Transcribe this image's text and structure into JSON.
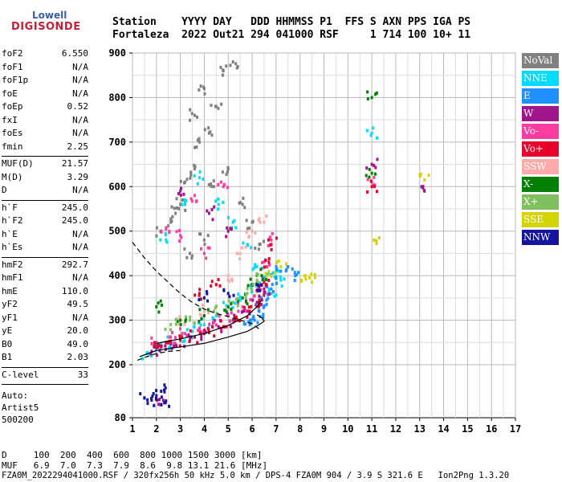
{
  "logo": {
    "top": "Lowell",
    "bottom": "DIGISONDE"
  },
  "header": {
    "labels": [
      "Station",
      "YYYY",
      "DAY",
      "DDD",
      "HHMMSS",
      "P1",
      "FFS",
      "S",
      "AXN",
      "PPS",
      "IGA",
      "PS"
    ],
    "values": [
      "Fortaleza",
      "2022",
      "Out21",
      "294",
      "041000",
      "RSF",
      "",
      "1",
      "714",
      "100",
      "10+",
      "11"
    ],
    "line1": "Station    YYYY DAY   DDD HHMMSS P1  FFS S AXN PPS IGA PS",
    "line2": "Fortaleza  2022 Out21 294 041000 RSF     1 714 100 10+ 11"
  },
  "params": {
    "group1": [
      {
        "k": "foF2",
        "v": "6.550"
      },
      {
        "k": "foF1",
        "v": "N/A"
      },
      {
        "k": "foF1p",
        "v": "N/A"
      },
      {
        "k": "foE",
        "v": "N/A"
      },
      {
        "k": "foEp",
        "v": "0.52"
      },
      {
        "k": "fxI",
        "v": "N/A"
      },
      {
        "k": "foEs",
        "v": "N/A"
      },
      {
        "k": "fmin",
        "v": "2.25"
      }
    ],
    "group2": [
      {
        "k": "MUF(D)",
        "v": "21.57"
      },
      {
        "k": "M(D)",
        "v": "3.29"
      },
      {
        "k": "D",
        "v": "N/A"
      }
    ],
    "group3": [
      {
        "k": "h`F",
        "v": "245.0"
      },
      {
        "k": "h`F2",
        "v": "245.0"
      },
      {
        "k": "h`E",
        "v": "N/A"
      },
      {
        "k": "h`Es",
        "v": "N/A"
      }
    ],
    "group4": [
      {
        "k": "hmF2",
        "v": "292.7"
      },
      {
        "k": "hmF1",
        "v": "N/A"
      },
      {
        "k": "hmE",
        "v": "110.0"
      },
      {
        "k": "yF2",
        "v": "49.5"
      },
      {
        "k": "yF1",
        "v": "N/A"
      },
      {
        "k": "yE",
        "v": "20.0"
      },
      {
        "k": "B0",
        "v": "49.0"
      },
      {
        "k": "B1",
        "v": "2.03"
      }
    ],
    "group5": [
      {
        "k": "C-level",
        "v": "33"
      }
    ]
  },
  "notes": {
    "auto": "Auto:",
    "artist": "Artist5",
    "code": "500200"
  },
  "legend": [
    {
      "label": "NoVal",
      "color": "#808080"
    },
    {
      "label": "NNE",
      "color": "#00dcff"
    },
    {
      "label": "E",
      "color": "#1e90ff"
    },
    {
      "label": "W",
      "color": "#a0148c"
    },
    {
      "label": "Vo-",
      "color": "#ff3ca0"
    },
    {
      "label": "Vo+",
      "color": "#e8002a"
    },
    {
      "label": "SSW",
      "color": "#ffaaaa"
    },
    {
      "label": "X-",
      "color": "#008000"
    },
    {
      "label": "X+",
      "color": "#7fbf5f"
    },
    {
      "label": "SSE",
      "color": "#d4d400"
    },
    {
      "label": "NNW",
      "color": "#1414a0"
    }
  ],
  "footer": {
    "d_row": "D     100  200  400  600  800 1000 1500 3000 [km]",
    "muf_row": "MUF   6.9  7.0  7.3  7.9  8.6  9.8 13.1 21.6 [MHz]",
    "info": "FZA0M_2022294041000.RSF / 320fx256h 50 kHz 5.0 km / DPS-4 FZA0M 904 / 3.9 S 321.6 E   Ion2Png 1.3.20"
  },
  "chart_data": {
    "type": "scatter",
    "title": "",
    "xlabel": "",
    "ylabel": "",
    "x_ticks": [
      1,
      2,
      3,
      4,
      5,
      6,
      7,
      8,
      9,
      10,
      11,
      12,
      13,
      14,
      15,
      16,
      17
    ],
    "y_ticks": [
      80,
      200,
      300,
      400,
      500,
      600,
      700,
      800,
      900
    ],
    "xlim": [
      1,
      17
    ],
    "ylim": [
      80,
      900
    ],
    "grid": true,
    "series": [
      {
        "name": "NoVal",
        "color": "#808080",
        "points": [
          [
            2.2,
            500
          ],
          [
            2.6,
            520
          ],
          [
            3.0,
            560
          ],
          [
            3.2,
            610
          ],
          [
            3.6,
            640
          ],
          [
            3.8,
            700
          ],
          [
            4.2,
            720
          ],
          [
            4.5,
            780
          ],
          [
            4.8,
            860
          ],
          [
            5.2,
            880
          ],
          [
            5.6,
            560
          ],
          [
            6.0,
            520
          ],
          [
            6.3,
            470
          ],
          [
            3.4,
            450
          ],
          [
            4.0,
            480
          ],
          [
            4.4,
            600
          ],
          [
            2.8,
            540
          ],
          [
            5.0,
            640
          ],
          [
            3.6,
            760
          ],
          [
            4.0,
            820
          ]
        ]
      },
      {
        "name": "NNE",
        "color": "#00dcff",
        "points": [
          [
            1.6,
            225
          ],
          [
            2.0,
            245
          ],
          [
            2.5,
            250
          ],
          [
            3.0,
            260
          ],
          [
            3.5,
            275
          ],
          [
            4.0,
            290
          ],
          [
            4.5,
            310
          ],
          [
            5.0,
            330
          ],
          [
            5.5,
            345
          ],
          [
            6.0,
            365
          ],
          [
            6.5,
            390
          ],
          [
            7.0,
            410
          ],
          [
            7.2,
            390
          ],
          [
            6.8,
            360
          ],
          [
            6.2,
            420
          ],
          [
            5.8,
            470
          ],
          [
            5.2,
            520
          ],
          [
            4.6,
            560
          ],
          [
            3.8,
            620
          ],
          [
            3.2,
            560
          ],
          [
            2.4,
            480
          ],
          [
            11.0,
            720
          ]
        ]
      },
      {
        "name": "E",
        "color": "#1e90ff",
        "points": [
          [
            6.3,
            320
          ],
          [
            6.6,
            345
          ],
          [
            6.8,
            370
          ],
          [
            7.0,
            395
          ],
          [
            7.2,
            410
          ],
          [
            7.5,
            420
          ],
          [
            7.8,
            400
          ],
          [
            6.1,
            300
          ],
          [
            5.9,
            290
          ],
          [
            6.5,
            330
          ]
        ]
      },
      {
        "name": "W",
        "color": "#a0148c",
        "points": [
          [
            1.8,
            230
          ],
          [
            2.2,
            240
          ],
          [
            2.8,
            245
          ],
          [
            3.4,
            255
          ],
          [
            4.0,
            270
          ],
          [
            4.6,
            285
          ],
          [
            5.2,
            300
          ],
          [
            5.8,
            320
          ],
          [
            6.2,
            340
          ],
          [
            6.5,
            370
          ],
          [
            5.0,
            500
          ],
          [
            4.2,
            540
          ],
          [
            3.0,
            590
          ],
          [
            11.0,
            650
          ],
          [
            13.2,
            590
          ],
          [
            2.2,
            110
          ]
        ]
      },
      {
        "name": "Vo-",
        "color": "#ff3ca0",
        "points": [
          [
            2.0,
            250
          ],
          [
            2.6,
            262
          ],
          [
            3.2,
            270
          ],
          [
            3.8,
            282
          ],
          [
            4.4,
            295
          ],
          [
            5.0,
            310
          ],
          [
            5.6,
            330
          ],
          [
            6.1,
            355
          ],
          [
            6.4,
            380
          ],
          [
            6.6,
            420
          ],
          [
            6.8,
            480
          ],
          [
            4.0,
            450
          ],
          [
            3.0,
            490
          ],
          [
            2.4,
            505
          ],
          [
            3.6,
            580
          ],
          [
            4.8,
            600
          ],
          [
            11.0,
            610
          ]
        ]
      },
      {
        "name": "Vo+",
        "color": "#e8002a",
        "points": [
          [
            1.9,
            240
          ],
          [
            2.4,
            250
          ],
          [
            3.0,
            255
          ],
          [
            3.6,
            262
          ],
          [
            4.2,
            272
          ],
          [
            4.8,
            285
          ],
          [
            5.4,
            300
          ],
          [
            5.9,
            320
          ],
          [
            6.3,
            345
          ],
          [
            6.5,
            385
          ],
          [
            6.7,
            430
          ],
          [
            6.8,
            470
          ],
          [
            3.8,
            360
          ],
          [
            4.5,
            380
          ],
          [
            11.0,
            600
          ]
        ]
      },
      {
        "name": "SSW",
        "color": "#ffaaaa",
        "points": [
          [
            3.0,
            300
          ],
          [
            4.0,
            320
          ],
          [
            5.0,
            400
          ],
          [
            5.5,
            450
          ],
          [
            6.0,
            500
          ],
          [
            6.5,
            520
          ]
        ]
      },
      {
        "name": "X-",
        "color": "#008000",
        "points": [
          [
            2.0,
            330
          ],
          [
            3.0,
            300
          ],
          [
            4.0,
            310
          ],
          [
            5.0,
            330
          ],
          [
            5.6,
            350
          ],
          [
            6.0,
            380
          ],
          [
            6.4,
            400
          ],
          [
            11.0,
            800
          ],
          [
            11.0,
            630
          ]
        ]
      },
      {
        "name": "X+",
        "color": "#7fbf5f",
        "points": [
          [
            2.6,
            290
          ],
          [
            3.4,
            300
          ],
          [
            4.4,
            320
          ],
          [
            5.2,
            340
          ],
          [
            5.8,
            360
          ],
          [
            6.2,
            390
          ]
        ]
      },
      {
        "name": "SSE",
        "color": "#d4d400",
        "points": [
          [
            6.8,
            400
          ],
          [
            7.2,
            420
          ],
          [
            8.2,
            400
          ],
          [
            8.4,
            395
          ],
          [
            11.1,
            480
          ],
          [
            13.2,
            615
          ]
        ]
      },
      {
        "name": "NNW",
        "color": "#1414a0",
        "points": [
          [
            1.5,
            125
          ],
          [
            1.8,
            120
          ],
          [
            2.0,
            130
          ],
          [
            2.2,
            140
          ],
          [
            2.4,
            118
          ],
          [
            4.0,
            350
          ],
          [
            5.0,
            360
          ],
          [
            6.2,
            380
          ]
        ]
      }
    ],
    "curves": [
      {
        "style": "dashed",
        "color": "#000000",
        "points": [
          [
            1.0,
            475
          ],
          [
            1.5,
            440
          ],
          [
            2.0,
            410
          ],
          [
            2.5,
            385
          ],
          [
            3.0,
            360
          ],
          [
            3.5,
            340
          ],
          [
            4.0,
            325
          ],
          [
            4.5,
            315
          ],
          [
            5.0,
            308
          ],
          [
            5.5,
            300
          ],
          [
            6.0,
            292
          ],
          [
            6.3,
            280
          ]
        ]
      },
      {
        "style": "dashed",
        "color": "#000000",
        "points": [
          [
            1.2,
            210
          ],
          [
            1.6,
            218
          ],
          [
            2.0,
            225
          ],
          [
            2.5,
            230
          ],
          [
            3.0,
            232
          ]
        ]
      },
      {
        "style": "solid",
        "color": "#000000",
        "points": [
          [
            1.3,
            218
          ],
          [
            2.0,
            232
          ],
          [
            3.0,
            240
          ],
          [
            4.0,
            248
          ],
          [
            5.0,
            262
          ],
          [
            5.8,
            275
          ],
          [
            6.3,
            290
          ],
          [
            6.5,
            298
          ],
          [
            6.4,
            306
          ],
          [
            6.2,
            312
          ]
        ]
      },
      {
        "style": "solid",
        "color": "#000000",
        "points": [
          [
            2.0,
            248
          ],
          [
            3.0,
            258
          ],
          [
            4.0,
            270
          ],
          [
            5.0,
            288
          ],
          [
            5.8,
            310
          ],
          [
            6.2,
            330
          ],
          [
            6.4,
            345
          ]
        ]
      }
    ]
  }
}
